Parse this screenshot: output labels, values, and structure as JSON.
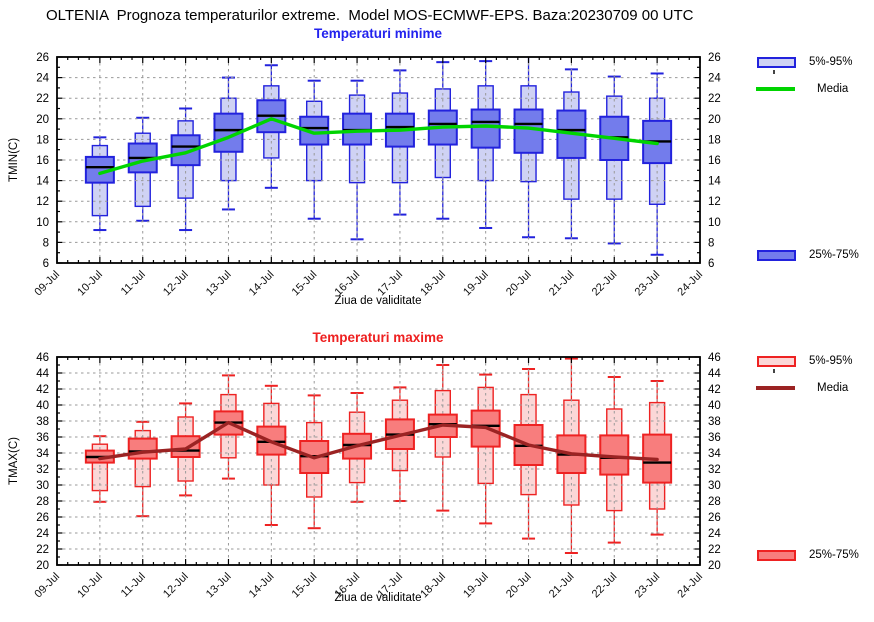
{
  "title": "OLTENIA  Prognoza temperaturilor extreme.  Model MOS-ECMWF-EPS. Baza:20230709 00 UTC",
  "chart_data": [
    {
      "type": "boxplot",
      "title": "Temperaturi minime",
      "xlabel": "Ziua de validitate",
      "ylabel": "TMIN(C)",
      "ylim": [
        6,
        26
      ],
      "ytick_step": 2,
      "grid": true,
      "legend_position": "right",
      "x_axis_labels": [
        "09-Jul",
        "10-Jul",
        "11-Jul",
        "12-Jul",
        "13-Jul",
        "14-Jul",
        "15-Jul",
        "16-Jul",
        "17-Jul",
        "18-Jul",
        "19-Jul",
        "20-Jul",
        "21-Jul",
        "22-Jul",
        "23-Jul",
        "24-Jul"
      ],
      "categories": [
        "10-Jul",
        "11-Jul",
        "12-Jul",
        "13-Jul",
        "14-Jul",
        "15-Jul",
        "16-Jul",
        "17-Jul",
        "18-Jul",
        "19-Jul",
        "20-Jul",
        "21-Jul",
        "22-Jul",
        "23-Jul"
      ],
      "whisker_low": [
        9.2,
        10.1,
        9.2,
        11.2,
        13.3,
        10.3,
        8.3,
        10.7,
        10.3,
        9.4,
        8.5,
        8.4,
        7.9,
        6.8
      ],
      "p5": [
        10.6,
        11.5,
        12.3,
        14.0,
        16.2,
        14.0,
        13.8,
        13.8,
        14.3,
        14.0,
        13.9,
        12.2,
        12.2,
        11.7
      ],
      "p25": [
        13.8,
        14.8,
        15.5,
        16.8,
        18.7,
        17.5,
        17.5,
        17.3,
        17.5,
        17.2,
        16.7,
        16.2,
        16.0,
        15.7
      ],
      "median": [
        15.3,
        16.2,
        17.3,
        18.9,
        20.3,
        19.1,
        18.9,
        19.2,
        19.5,
        19.7,
        19.5,
        18.9,
        18.2,
        17.8
      ],
      "p75": [
        16.3,
        17.6,
        18.4,
        20.5,
        21.8,
        20.2,
        20.5,
        20.5,
        20.8,
        20.9,
        20.9,
        20.8,
        20.2,
        19.8
      ],
      "p95": [
        17.4,
        18.6,
        19.8,
        22.0,
        23.2,
        21.7,
        22.3,
        22.5,
        22.9,
        23.2,
        23.2,
        22.6,
        22.2,
        22.0
      ],
      "whisker_high": [
        18.2,
        20.1,
        21.0,
        24.0,
        25.2,
        23.7,
        23.7,
        24.7,
        25.5,
        25.6,
        26.3,
        24.8,
        24.1,
        24.4
      ],
      "media": [
        14.7,
        15.9,
        16.7,
        18.2,
        20.0,
        18.6,
        18.8,
        18.9,
        19.2,
        19.3,
        19.1,
        18.6,
        18.1,
        17.6
      ],
      "legend": {
        "band": "5%-95%",
        "media": "Media",
        "box": "25%-75%"
      },
      "colors": {
        "border": "#2222dd",
        "box_fill": "#737cec",
        "band_fill": "#cfd2f4",
        "media": "#00d400",
        "median": "#000000",
        "title": "#2222ee"
      }
    },
    {
      "type": "boxplot",
      "title": "Temperaturi maxime",
      "xlabel": "Ziua de validitate",
      "ylabel": "TMAX(C)",
      "ylim": [
        20,
        46
      ],
      "ytick_step": 2,
      "grid": true,
      "legend_position": "right",
      "x_axis_labels": [
        "09-Jul",
        "10-Jul",
        "11-Jul",
        "12-Jul",
        "13-Jul",
        "14-Jul",
        "15-Jul",
        "16-Jul",
        "17-Jul",
        "18-Jul",
        "19-Jul",
        "20-Jul",
        "21-Jul",
        "22-Jul",
        "23-Jul",
        "24-Jul"
      ],
      "categories": [
        "10-Jul",
        "11-Jul",
        "12-Jul",
        "13-Jul",
        "14-Jul",
        "15-Jul",
        "16-Jul",
        "17-Jul",
        "18-Jul",
        "19-Jul",
        "20-Jul",
        "21-Jul",
        "22-Jul",
        "23-Jul"
      ],
      "whisker_low": [
        27.9,
        26.1,
        28.7,
        30.8,
        25.0,
        24.6,
        27.9,
        28.0,
        26.8,
        25.2,
        23.3,
        21.5,
        22.8,
        23.8
      ],
      "p5": [
        29.3,
        29.8,
        30.5,
        33.4,
        30.0,
        28.5,
        30.3,
        31.8,
        33.5,
        30.2,
        28.8,
        27.5,
        26.8,
        27.0
      ],
      "p25": [
        32.8,
        33.3,
        33.5,
        36.3,
        33.8,
        31.5,
        33.3,
        34.5,
        36.0,
        34.8,
        32.5,
        31.5,
        31.3,
        30.3
      ],
      "median": [
        33.5,
        34.2,
        34.3,
        37.8,
        35.4,
        33.6,
        35.0,
        36.3,
        37.6,
        37.4,
        34.9,
        33.8,
        33.4,
        32.8
      ],
      "p75": [
        34.3,
        35.8,
        36.1,
        39.2,
        37.3,
        35.5,
        36.4,
        38.2,
        38.8,
        39.3,
        37.5,
        36.2,
        36.2,
        36.3
      ],
      "p95": [
        35.1,
        36.8,
        38.5,
        41.3,
        40.2,
        37.8,
        39.1,
        40.6,
        41.8,
        42.2,
        41.3,
        40.6,
        39.5,
        40.3
      ],
      "whisker_high": [
        36.1,
        37.9,
        40.2,
        43.7,
        42.4,
        41.2,
        41.5,
        42.2,
        45.0,
        43.8,
        44.5,
        45.8,
        43.5,
        43.0
      ],
      "media": [
        33.3,
        34.1,
        34.5,
        37.8,
        35.4,
        33.4,
        34.9,
        36.2,
        37.5,
        37.2,
        35.0,
        33.9,
        33.5,
        33.2
      ],
      "legend": {
        "band": "5%-95%",
        "media": "Media",
        "box": "25%-75%"
      },
      "colors": {
        "border": "#ee2222",
        "box_fill": "#f87d7d",
        "band_fill": "#fbd7d7",
        "media": "#9b2323",
        "median": "#000000",
        "title": "#ee2020"
      }
    }
  ]
}
